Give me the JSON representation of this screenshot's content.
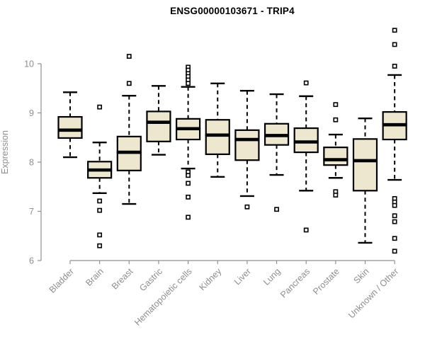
{
  "chart_data": {
    "type": "boxplot",
    "title": "ENSG00000103671 - TRIP4",
    "ylabel": "Expression",
    "xlabel": "",
    "ylim": [
      6,
      10
    ],
    "yticks": [
      6,
      7,
      8,
      9,
      10
    ],
    "grid": false,
    "legend": "none",
    "box_fill_color": "#EDE7CF",
    "box_line_color": "#000000",
    "axis_color": "#909090",
    "text_color": "#8e8e8e",
    "title_color": "#000000",
    "categories": [
      "Bladder",
      "Brain",
      "Breast",
      "Gastric",
      "Hematopoietic cells",
      "Kidney",
      "Liver",
      "Lung",
      "Pancreas",
      "Prostate",
      "Skin",
      "Unknown / Other"
    ],
    "series": [
      {
        "category": "Bladder",
        "whisker_low": 8.1,
        "q1": 8.49,
        "median": 8.65,
        "q3": 8.92,
        "whisker_high": 9.42,
        "outliers": []
      },
      {
        "category": "Brain",
        "whisker_low": 7.37,
        "q1": 7.68,
        "median": 7.84,
        "q3": 8.01,
        "whisker_high": 8.4,
        "outliers": [
          9.12,
          7.21,
          7.02,
          6.52,
          6.3
        ]
      },
      {
        "category": "Breast",
        "whisker_low": 7.15,
        "q1": 7.83,
        "median": 8.2,
        "q3": 8.52,
        "whisker_high": 9.35,
        "outliers": [
          10.15,
          9.6
        ]
      },
      {
        "category": "Gastric",
        "whisker_low": 8.15,
        "q1": 8.42,
        "median": 8.81,
        "q3": 9.03,
        "whisker_high": 9.55,
        "outliers": []
      },
      {
        "category": "Hematopoietic cells",
        "whisker_low": 7.87,
        "q1": 8.46,
        "median": 8.68,
        "q3": 8.88,
        "whisker_high": 9.53,
        "outliers": [
          9.93,
          9.87,
          9.8,
          9.74,
          9.67,
          9.6,
          7.8,
          7.73,
          7.57,
          7.29,
          6.88
        ]
      },
      {
        "category": "Kidney",
        "whisker_low": 7.7,
        "q1": 8.16,
        "median": 8.55,
        "q3": 8.86,
        "whisker_high": 9.6,
        "outliers": []
      },
      {
        "category": "Liver",
        "whisker_low": 7.31,
        "q1": 8.04,
        "median": 8.46,
        "q3": 8.65,
        "whisker_high": 9.45,
        "outliers": [
          7.09
        ]
      },
      {
        "category": "Lung",
        "whisker_low": 7.74,
        "q1": 8.35,
        "median": 8.54,
        "q3": 8.78,
        "whisker_high": 9.38,
        "outliers": [
          7.04
        ]
      },
      {
        "category": "Pancreas",
        "whisker_low": 7.42,
        "q1": 8.2,
        "median": 8.41,
        "q3": 8.69,
        "whisker_high": 9.34,
        "outliers": [
          9.61,
          6.62
        ]
      },
      {
        "category": "Prostate",
        "whisker_low": 7.68,
        "q1": 7.94,
        "median": 8.05,
        "q3": 8.3,
        "whisker_high": 8.56,
        "outliers": [
          9.17,
          8.86,
          7.4,
          7.33
        ]
      },
      {
        "category": "Skin",
        "whisker_low": 6.36,
        "q1": 7.42,
        "median": 8.03,
        "q3": 8.47,
        "whisker_high": 8.89,
        "outliers": []
      },
      {
        "category": "Unknown / Other",
        "whisker_low": 7.64,
        "q1": 8.46,
        "median": 8.76,
        "q3": 9.02,
        "whisker_high": 9.77,
        "outliers": [
          10.68,
          10.39,
          9.95,
          7.26,
          7.19,
          7.12,
          6.91,
          6.79,
          6.45,
          6.19
        ]
      }
    ]
  }
}
